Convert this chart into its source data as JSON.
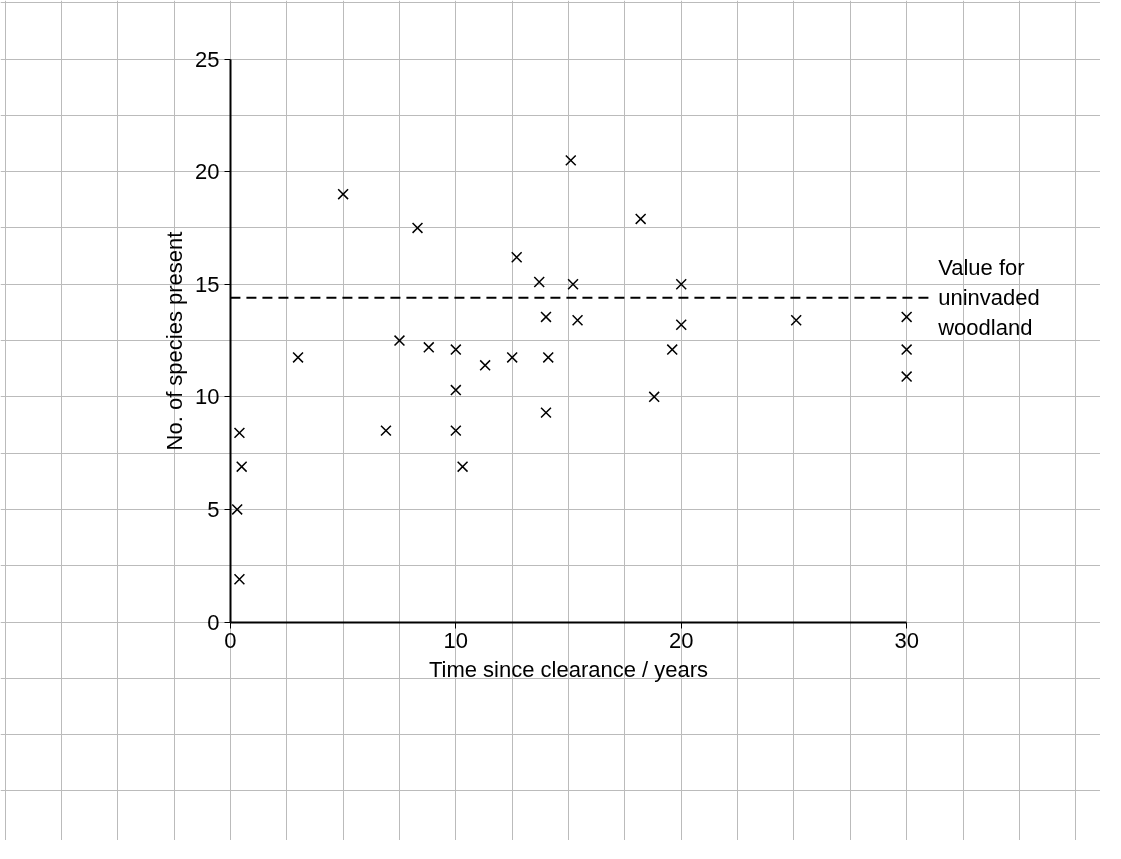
{
  "chart_data": {
    "type": "scatter",
    "xlabel": "Time since clearance / years",
    "ylabel": "No. of species present",
    "x": [
      0.4,
      0.5,
      0.3,
      0.4,
      3.0,
      5.0,
      6.9,
      7.5,
      8.3,
      8.8,
      10.0,
      10.0,
      10.0,
      10.3,
      11.3,
      12.5,
      12.7,
      13.7,
      14.0,
      14.1,
      14.0,
      15.1,
      15.2,
      15.4,
      18.2,
      18.8,
      19.6,
      20.0,
      20.0,
      25.1,
      30.0,
      30.0,
      30.0
    ],
    "series": [
      {
        "color": "#000000",
        "values": [
          8.4,
          6.9,
          5.0,
          1.9,
          11.75,
          19.0,
          8.5,
          12.5,
          17.5,
          12.2,
          12.1,
          10.3,
          8.5,
          6.9,
          11.4,
          11.75,
          16.2,
          15.1,
          13.55,
          11.75,
          9.3,
          20.5,
          15.0,
          13.4,
          17.9,
          10.0,
          12.1,
          15.0,
          13.2,
          13.4,
          13.55,
          12.1,
          10.9
        ]
      }
    ],
    "xlim": [
      0,
      30
    ],
    "ylim": [
      0,
      25
    ],
    "xticks": [
      0,
      10,
      20,
      30
    ],
    "yticks": [
      0,
      5,
      10,
      15,
      20,
      25
    ],
    "ref_lines": [
      {
        "axis": "y",
        "value": 14.4,
        "label": "Value for\nuninvaded\nwoodland",
        "line_style": "dashed",
        "color": "#000000"
      }
    ],
    "grid": true,
    "marker": "cross"
  }
}
